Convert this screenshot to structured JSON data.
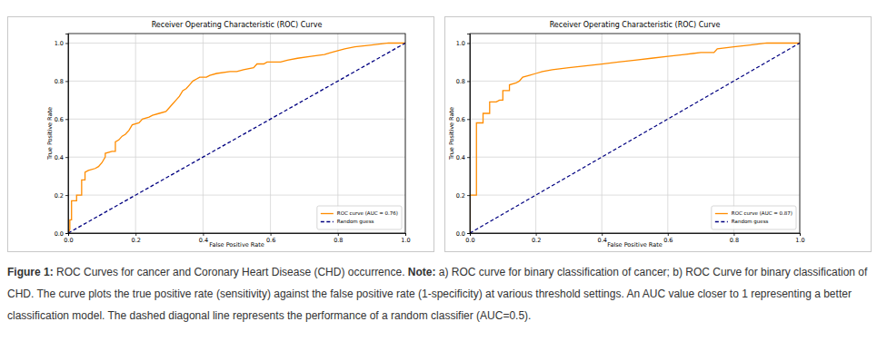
{
  "chart_data": [
    {
      "type": "line",
      "title": "Receiver Operating Characteristic (ROC) Curve",
      "x_label": "False Positive Rate",
      "y_label": "True Positive Rate",
      "xlim": [
        0,
        1
      ],
      "ylim": [
        0,
        1.05
      ],
      "xticks": [
        {
          "value": 0,
          "label": "0.0"
        },
        0.2,
        0.4,
        0.6,
        0.8,
        {
          "value": 1,
          "label": "1.0"
        }
      ],
      "yticks": [
        {
          "value": 0,
          "label": "0.0"
        },
        0.2,
        0.4,
        0.6,
        0.8,
        {
          "value": 1,
          "label": "1.0"
        }
      ],
      "grid": true,
      "legend": "lower right",
      "series": [
        {
          "name": "ROC curve (AUC = 0.76)",
          "color": "#ff8c00",
          "line_style": "solid",
          "x": [
            0,
            0.005,
            0.005,
            0.01,
            0.01,
            0.025,
            0.025,
            0.04,
            0.04,
            0.05,
            0.05,
            0.06,
            0.08,
            0.09,
            0.1,
            0.11,
            0.11,
            0.13,
            0.14,
            0.14,
            0.15,
            0.16,
            0.17,
            0.18,
            0.19,
            0.21,
            0.22,
            0.24,
            0.25,
            0.27,
            0.29,
            0.3,
            0.31,
            0.32,
            0.33,
            0.34,
            0.35,
            0.36,
            0.37,
            0.38,
            0.39,
            0.41,
            0.42,
            0.44,
            0.48,
            0.5,
            0.52,
            0.55,
            0.56,
            0.58,
            0.59,
            0.63,
            0.65,
            0.68,
            0.72,
            0.76,
            0.78,
            0.8,
            0.82,
            0.85,
            0.9,
            0.95,
            1
          ],
          "values": [
            0,
            0.02,
            0.07,
            0.07,
            0.17,
            0.17,
            0.2,
            0.2,
            0.28,
            0.28,
            0.32,
            0.33,
            0.34,
            0.35,
            0.37,
            0.4,
            0.42,
            0.43,
            0.43,
            0.48,
            0.49,
            0.51,
            0.52,
            0.54,
            0.57,
            0.58,
            0.6,
            0.61,
            0.62,
            0.63,
            0.64,
            0.66,
            0.68,
            0.7,
            0.72,
            0.75,
            0.76,
            0.78,
            0.8,
            0.81,
            0.82,
            0.82,
            0.83,
            0.84,
            0.85,
            0.85,
            0.86,
            0.87,
            0.89,
            0.89,
            0.9,
            0.9,
            0.91,
            0.92,
            0.93,
            0.94,
            0.95,
            0.96,
            0.97,
            0.98,
            0.99,
            1,
            1
          ]
        },
        {
          "name": "Random guess",
          "color": "#000080",
          "line_style": "dashed",
          "x": [
            0,
            1
          ],
          "values": [
            0,
            1
          ]
        }
      ]
    },
    {
      "type": "line",
      "title": "Receiver Operating Characteristic (ROC) Curve",
      "x_label": "False Positive Rate",
      "y_label": "True Positive Rate",
      "xlim": [
        0,
        1
      ],
      "ylim": [
        0,
        1.05
      ],
      "xticks": [
        {
          "value": 0,
          "label": "0.0"
        },
        0.2,
        0.4,
        0.6,
        0.8,
        {
          "value": 1,
          "label": "1.0"
        }
      ],
      "yticks": [
        {
          "value": 0,
          "label": "0.0"
        },
        0.2,
        0.4,
        0.6,
        0.8,
        {
          "value": 1,
          "label": "1.0"
        }
      ],
      "grid": true,
      "legend": "lower right",
      "series": [
        {
          "name": "ROC curve (AUC = 0.87)",
          "color": "#ff8c00",
          "line_style": "solid",
          "x": [
            0,
            0,
            0.02,
            0.02,
            0.04,
            0.04,
            0.06,
            0.06,
            0.08,
            0.09,
            0.1,
            0.1,
            0.12,
            0.12,
            0.14,
            0.15,
            0.16,
            0.18,
            0.2,
            0.22,
            0.25,
            0.3,
            0.35,
            0.4,
            0.45,
            0.5,
            0.55,
            0.6,
            0.65,
            0.7,
            0.74,
            0.75,
            0.8,
            0.85,
            0.9,
            1
          ],
          "values": [
            0,
            0.2,
            0.2,
            0.58,
            0.58,
            0.63,
            0.63,
            0.69,
            0.69,
            0.7,
            0.7,
            0.75,
            0.75,
            0.78,
            0.79,
            0.8,
            0.82,
            0.83,
            0.84,
            0.85,
            0.86,
            0.87,
            0.88,
            0.89,
            0.9,
            0.91,
            0.92,
            0.93,
            0.94,
            0.95,
            0.95,
            0.97,
            0.98,
            0.99,
            1,
            1
          ]
        },
        {
          "name": "Random guess",
          "color": "#000080",
          "line_style": "dashed",
          "x": [
            0,
            1
          ],
          "values": [
            0,
            1
          ]
        }
      ]
    }
  ],
  "caption": {
    "label": "Figure 1:",
    "title": "ROC Curves for cancer and Coronary Heart Disease (CHD) occurrence.",
    "note_label": "Note:",
    "note": "a) ROC curve for binary classification of cancer; b) ROC Curve for binary classification of CHD. The curve plots the true positive rate (sensitivity) against the false positive rate (1-specificity) at various threshold settings. An AUC value closer to 1 representing a better classification model. The dashed diagonal line represents the performance of a random classifier (AUC=0.5)."
  }
}
